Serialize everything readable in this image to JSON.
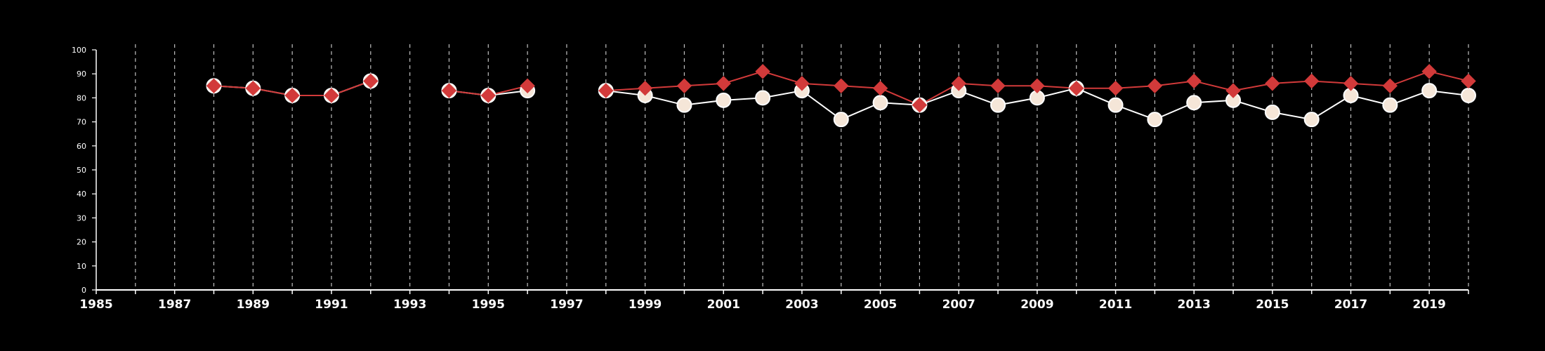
{
  "chart_data": {
    "type": "line",
    "background": "#000000",
    "grid": "vertical dashed at each year",
    "legend": "none",
    "xlim": [
      1985,
      2020
    ],
    "ylim": [
      0,
      100
    ],
    "x_ticks": [
      1985,
      1987,
      1989,
      1991,
      1993,
      1995,
      1997,
      1999,
      2001,
      2003,
      2005,
      2007,
      2009,
      2011,
      2013,
      2015,
      2017,
      2019
    ],
    "y_ticks": [
      0,
      10,
      20,
      30,
      40,
      50,
      60,
      70,
      80,
      90,
      100
    ],
    "series": [
      {
        "marker": "circle",
        "color": "#ffffff",
        "fill": "#f5e6d8",
        "points": [
          [
            1988,
            85
          ],
          [
            1989,
            84
          ],
          [
            1990,
            81
          ],
          [
            1991,
            81
          ],
          [
            1992,
            87
          ],
          [
            1994,
            83
          ],
          [
            1995,
            81
          ],
          [
            1996,
            83
          ],
          [
            1998,
            83
          ],
          [
            1999,
            81
          ],
          [
            2000,
            77
          ],
          [
            2001,
            79
          ],
          [
            2002,
            80
          ],
          [
            2003,
            83
          ],
          [
            2004,
            71
          ],
          [
            2005,
            78
          ],
          [
            2006,
            77
          ],
          [
            2007,
            83
          ],
          [
            2008,
            77
          ],
          [
            2009,
            80
          ],
          [
            2010,
            84
          ],
          [
            2011,
            77
          ],
          [
            2012,
            71
          ],
          [
            2013,
            78
          ],
          [
            2014,
            79
          ],
          [
            2015,
            74
          ],
          [
            2016,
            71
          ],
          [
            2017,
            81
          ],
          [
            2018,
            77
          ],
          [
            2019,
            83
          ],
          [
            2020,
            81
          ]
        ]
      },
      {
        "marker": "diamond",
        "color": "#d23a3a",
        "fill": "#d23a3a",
        "points": [
          [
            1988,
            85
          ],
          [
            1989,
            84
          ],
          [
            1990,
            81
          ],
          [
            1991,
            81
          ],
          [
            1992,
            87
          ],
          [
            1994,
            83
          ],
          [
            1995,
            81
          ],
          [
            1996,
            85
          ],
          [
            1998,
            83
          ],
          [
            1999,
            84
          ],
          [
            2000,
            85
          ],
          [
            2001,
            86
          ],
          [
            2002,
            91
          ],
          [
            2003,
            86
          ],
          [
            2004,
            85
          ],
          [
            2005,
            84
          ],
          [
            2006,
            77
          ],
          [
            2007,
            86
          ],
          [
            2008,
            85
          ],
          [
            2009,
            85
          ],
          [
            2010,
            84
          ],
          [
            2011,
            84
          ],
          [
            2012,
            85
          ],
          [
            2013,
            87
          ],
          [
            2014,
            83
          ],
          [
            2015,
            86
          ],
          [
            2016,
            87
          ],
          [
            2017,
            86
          ],
          [
            2018,
            85
          ],
          [
            2019,
            91
          ],
          [
            2020,
            87
          ]
        ]
      }
    ]
  }
}
